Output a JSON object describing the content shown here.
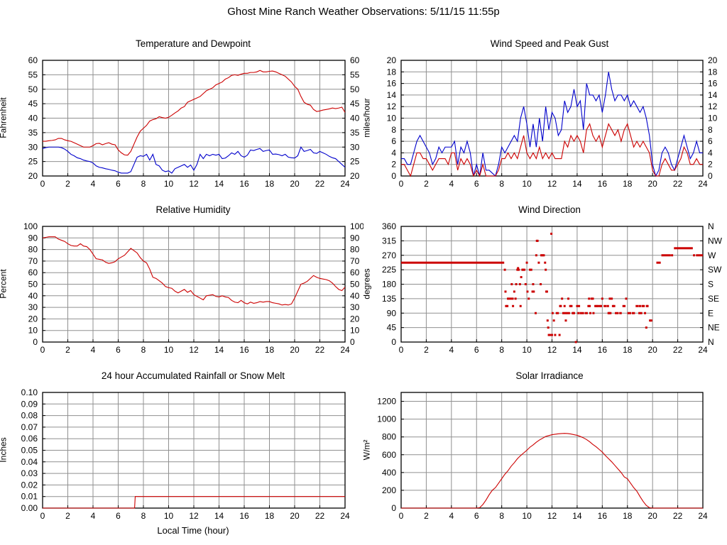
{
  "page_title": "Ghost Mine Ranch Weather Observations: 5/11/15 11:55p",
  "colors": {
    "red": "#cc0000",
    "blue": "#0000cc",
    "grid": "#909090",
    "frame": "#000000",
    "background": "#ffffff"
  },
  "chart_data": [
    {
      "type": "line",
      "title": "Temperature and Dewpoint",
      "ylabel": "Fahrenheit",
      "xlim": [
        0,
        24
      ],
      "xtick_step": 2,
      "ylim": [
        20,
        60
      ],
      "ytick_step": 5,
      "ytick_decimals": 0,
      "right_axis": "mirror",
      "series": [
        {
          "name": "Temperature",
          "color": "red",
          "x_start": 0,
          "x_step": 0.25,
          "values": [
            32,
            32,
            32.2,
            32.3,
            32.5,
            33,
            33,
            32.5,
            32.2,
            32,
            31.5,
            31,
            30.5,
            30,
            30,
            30,
            30.5,
            31.2,
            31.3,
            30.8,
            31.2,
            31.5,
            31,
            30.8,
            29,
            28,
            27.3,
            27.2,
            28.5,
            31,
            33.5,
            35.5,
            36.5,
            37.5,
            39,
            39.5,
            39.8,
            40.5,
            40.2,
            40,
            40.3,
            41,
            41.8,
            42.5,
            43.5,
            44,
            45.5,
            46,
            46.5,
            47,
            47.5,
            48.5,
            49.5,
            50,
            50.5,
            51.5,
            52,
            52.5,
            53.5,
            54,
            54.8,
            55,
            54.8,
            55.2,
            55.5,
            55.5,
            55.8,
            55.8,
            56,
            56.5,
            56,
            56,
            56.2,
            56.3,
            56,
            55.5,
            55,
            54.5,
            53.5,
            52.5,
            51,
            50,
            47.5,
            45.5,
            44.8,
            44.5,
            43,
            42.3,
            42.5,
            42.8,
            43,
            43.2,
            43.5,
            43.3,
            43.5,
            43.8,
            42
          ]
        },
        {
          "name": "Dewpoint",
          "color": "blue",
          "x_start": 0,
          "x_step": 0.25,
          "values": [
            29.5,
            29.8,
            30,
            30,
            30,
            30,
            29.8,
            29.3,
            28.5,
            27.5,
            27,
            26.3,
            26,
            25.5,
            25.2,
            25,
            24.5,
            23.5,
            23,
            22.8,
            22.5,
            22.3,
            22,
            21.8,
            21.3,
            21,
            21,
            21,
            21.5,
            24,
            26.5,
            27,
            26.8,
            27.5,
            25.5,
            27.5,
            24,
            23.5,
            22,
            21.5,
            21.8,
            21,
            22.5,
            23,
            23.5,
            24,
            23,
            23.8,
            22,
            24,
            27.5,
            26,
            27.5,
            27,
            27.5,
            27.2,
            27.5,
            26,
            26.2,
            27,
            28,
            27.5,
            28.5,
            27,
            26.5,
            27.2,
            29,
            28.8,
            29.2,
            29.5,
            28.5,
            28.8,
            29,
            27.5,
            27.6,
            27.4,
            27,
            27.5,
            26.5,
            26.3,
            26.2,
            27,
            30,
            28.5,
            28.8,
            29.2,
            28,
            27.8,
            28.5,
            28,
            27.5,
            26.8,
            26.3,
            26,
            25,
            24,
            23
          ]
        }
      ]
    },
    {
      "type": "line",
      "title": "Wind Speed and Peak Gust",
      "ylabel": "miles/hour",
      "xlim": [
        0,
        24
      ],
      "xtick_step": 2,
      "ylim": [
        0,
        20
      ],
      "ytick_step": 2,
      "ytick_decimals": 0,
      "right_axis": "mirror",
      "series": [
        {
          "name": "Peak Gust",
          "color": "blue",
          "x_start": 0,
          "x_step": 0.25,
          "values": [
            3,
            3,
            2,
            2,
            4,
            6,
            7,
            6,
            5,
            4,
            2,
            3,
            5,
            4,
            5,
            5,
            5,
            6,
            2,
            5,
            4,
            6,
            4,
            0,
            2,
            0,
            4,
            1,
            1,
            0.5,
            0,
            2,
            5,
            4,
            5,
            6,
            7,
            6,
            10,
            12,
            9,
            5,
            9,
            5,
            10,
            6,
            12,
            8,
            11,
            10,
            7,
            8,
            13,
            11,
            12,
            15,
            12,
            13,
            8,
            16,
            14,
            14,
            13,
            14,
            11,
            14,
            18,
            15,
            13,
            14,
            14,
            13,
            14,
            12,
            13,
            12,
            11,
            12,
            10,
            7,
            2,
            0,
            1,
            4,
            5,
            4,
            2,
            1,
            3,
            5,
            7,
            5,
            3,
            4,
            6,
            4,
            4
          ]
        },
        {
          "name": "Wind Speed",
          "color": "red",
          "x_start": 0,
          "x_step": 0.25,
          "values": [
            2,
            2,
            1,
            0,
            2,
            4,
            4,
            3,
            3,
            2,
            1,
            2,
            3,
            3,
            3,
            2,
            4,
            4,
            1,
            3,
            2,
            3,
            2,
            0,
            1,
            0,
            2,
            0,
            0,
            0,
            0,
            1,
            3,
            3,
            4,
            3,
            4,
            3,
            5,
            7,
            4,
            3,
            4,
            3,
            5,
            3,
            4,
            3,
            4,
            3,
            3,
            3,
            6,
            5,
            7,
            6,
            7,
            6,
            4,
            8,
            9,
            7,
            6,
            7,
            5,
            7,
            9,
            8,
            7,
            8,
            6,
            8,
            9,
            7,
            5,
            6,
            5,
            6,
            5,
            4,
            1,
            0,
            0,
            2,
            3,
            2,
            1,
            1,
            2,
            3,
            5,
            4,
            2,
            2,
            3,
            2,
            2
          ]
        }
      ]
    },
    {
      "type": "line",
      "title": "Relative Humidity",
      "ylabel": "Percent",
      "xlim": [
        0,
        24
      ],
      "xtick_step": 2,
      "ylim": [
        0,
        100
      ],
      "ytick_step": 10,
      "ytick_decimals": 0,
      "right_axis": "mirror",
      "series": [
        {
          "name": "Relative Humidity",
          "color": "red",
          "x_start": 0,
          "x_step": 0.25,
          "values": [
            90,
            90.5,
            91,
            91,
            91,
            89,
            88,
            87,
            85,
            83.5,
            83,
            83,
            85,
            83,
            82.5,
            80,
            76,
            72,
            71.5,
            71,
            69,
            68,
            68.5,
            69.5,
            72,
            73.5,
            75,
            78,
            81,
            79,
            77,
            73,
            70,
            68.5,
            63,
            56,
            55,
            53,
            51,
            48,
            47,
            46.5,
            44,
            42.5,
            44,
            45.5,
            43,
            44.5,
            41,
            39.5,
            38,
            36.5,
            40,
            40.5,
            41,
            39.5,
            39,
            40,
            39,
            38.5,
            36,
            34.5,
            34,
            36,
            34,
            33,
            34.5,
            33.5,
            34,
            35,
            34.5,
            35,
            35,
            34,
            33.5,
            33,
            32,
            32.5,
            32,
            33,
            38,
            44,
            50,
            51,
            52.5,
            55,
            57.5,
            56,
            55,
            54.5,
            54,
            53,
            51,
            48,
            45.5,
            44.5,
            47.5
          ]
        }
      ]
    },
    {
      "type": "scatter",
      "title": "Wind Direction",
      "ylabel": "degrees",
      "xlim": [
        0,
        24
      ],
      "xtick_step": 2,
      "ylim": [
        0,
        360
      ],
      "ytick_step": 45,
      "ytick_decimals": 0,
      "right_axis": "compass",
      "compass_labels": [
        "N",
        "NE",
        "E",
        "SE",
        "S",
        "SW",
        "W",
        "NW",
        "N"
      ],
      "marker_color": "red",
      "segments": [
        [
          0,
          8.2,
          247
        ],
        [
          8.55,
          8.95,
          135
        ],
        [
          12.3,
          12.55,
          90
        ],
        [
          14.2,
          14.55,
          90
        ],
        [
          14.6,
          14.85,
          90
        ],
        [
          16.1,
          16.35,
          112
        ],
        [
          17.0,
          17.3,
          90
        ],
        [
          17.35,
          17.55,
          90
        ],
        [
          17.6,
          17.85,
          112
        ],
        [
          18.0,
          18.3,
          90
        ],
        [
          18.35,
          18.6,
          90
        ],
        [
          18.65,
          18.9,
          112
        ],
        [
          20.3,
          20.65,
          247
        ],
        [
          20.7,
          21.45,
          270
        ],
        [
          21.7,
          23.2,
          292
        ],
        [
          23.45,
          24,
          270
        ]
      ],
      "points": [
        [
          8.25,
          225
        ],
        [
          8.3,
          157
        ],
        [
          8.35,
          112
        ],
        [
          8.45,
          112
        ],
        [
          8.5,
          135
        ],
        [
          8.8,
          180
        ],
        [
          8.9,
          112
        ],
        [
          9.0,
          157
        ],
        [
          9.1,
          135
        ],
        [
          9.15,
          180
        ],
        [
          9.25,
          225
        ],
        [
          9.3,
          230
        ],
        [
          9.35,
          225
        ],
        [
          9.45,
          180
        ],
        [
          9.5,
          112
        ],
        [
          9.55,
          202
        ],
        [
          9.65,
          225
        ],
        [
          9.7,
          225
        ],
        [
          9.8,
          225
        ],
        [
          9.9,
          180
        ],
        [
          10.0,
          247
        ],
        [
          10.05,
          157
        ],
        [
          10.15,
          135
        ],
        [
          10.25,
          225
        ],
        [
          10.35,
          225
        ],
        [
          10.45,
          157
        ],
        [
          10.5,
          180
        ],
        [
          10.55,
          157
        ],
        [
          10.7,
          90
        ],
        [
          10.75,
          270
        ],
        [
          10.8,
          315
        ],
        [
          10.85,
          315
        ],
        [
          10.95,
          247
        ],
        [
          11.1,
          180
        ],
        [
          11.15,
          270
        ],
        [
          11.25,
          270
        ],
        [
          11.35,
          270
        ],
        [
          11.45,
          247
        ],
        [
          11.5,
          225
        ],
        [
          11.55,
          157
        ],
        [
          11.6,
          157
        ],
        [
          11.65,
          67
        ],
        [
          11.7,
          45
        ],
        [
          11.75,
          22
        ],
        [
          11.85,
          22
        ],
        [
          11.95,
          337
        ],
        [
          12.0,
          22
        ],
        [
          12.05,
          90
        ],
        [
          12.15,
          67
        ],
        [
          12.25,
          22
        ],
        [
          12.6,
          22
        ],
        [
          12.65,
          112
        ],
        [
          12.7,
          112
        ],
        [
          12.8,
          135
        ],
        [
          12.9,
          90
        ],
        [
          13.0,
          112
        ],
        [
          13.05,
          90
        ],
        [
          13.1,
          67
        ],
        [
          13.2,
          90
        ],
        [
          13.3,
          135
        ],
        [
          13.35,
          90
        ],
        [
          13.45,
          112
        ],
        [
          13.55,
          112
        ],
        [
          13.65,
          90
        ],
        [
          13.7,
          90
        ],
        [
          13.75,
          90
        ],
        [
          13.9,
          0
        ],
        [
          14.0,
          112
        ],
        [
          14.1,
          90
        ],
        [
          14.15,
          112
        ],
        [
          14.9,
          112
        ],
        [
          14.95,
          135
        ],
        [
          15.0,
          112
        ],
        [
          15.05,
          90
        ],
        [
          15.15,
          135
        ],
        [
          15.25,
          135
        ],
        [
          15.3,
          90
        ],
        [
          15.45,
          112
        ],
        [
          15.55,
          112
        ],
        [
          15.65,
          112
        ],
        [
          15.8,
          112
        ],
        [
          15.9,
          112
        ],
        [
          16.0,
          135
        ],
        [
          16.45,
          112
        ],
        [
          16.5,
          90
        ],
        [
          16.55,
          90
        ],
        [
          16.6,
          135
        ],
        [
          16.65,
          90
        ],
        [
          16.75,
          135
        ],
        [
          16.85,
          112
        ],
        [
          16.95,
          112
        ],
        [
          17.9,
          135
        ],
        [
          18.95,
          90
        ],
        [
          19.0,
          112
        ],
        [
          19.1,
          90
        ],
        [
          19.2,
          112
        ],
        [
          19.3,
          112
        ],
        [
          19.4,
          90
        ],
        [
          19.5,
          45
        ],
        [
          19.55,
          112
        ],
        [
          19.6,
          112
        ],
        [
          19.8,
          67
        ],
        [
          19.9,
          67
        ],
        [
          21.55,
          270
        ],
        [
          23.3,
          270
        ]
      ]
    },
    {
      "type": "line",
      "title": "24 hour Accumulated Rainfall or Snow Melt",
      "ylabel": "Inches",
      "xlabel": "Local Time (hour)",
      "xlim": [
        0,
        24
      ],
      "xtick_step": 2,
      "ylim": [
        0,
        0.1
      ],
      "ytick_step": 0.01,
      "ytick_decimals": 2,
      "right_axis": "none",
      "series": [
        {
          "name": "Accumulated Rainfall",
          "color": "red",
          "points": [
            [
              0,
              0
            ],
            [
              7.3,
              0
            ],
            [
              7.35,
              0.01
            ],
            [
              24,
              0.01
            ]
          ]
        }
      ]
    },
    {
      "type": "line",
      "title": "Solar Irradiance",
      "ylabel": "W/m²",
      "xlim": [
        0,
        24
      ],
      "xtick_step": 2,
      "ylim": [
        0,
        1300
      ],
      "ytick_step": 200,
      "ytick_decimals": 0,
      "right_axis": "none",
      "series": [
        {
          "name": "Solar Irradiance",
          "color": "red",
          "x_start": 0,
          "x_step": 0.25,
          "values": [
            0,
            0,
            0,
            0,
            0,
            0,
            0,
            0,
            0,
            0,
            0,
            0,
            0,
            0,
            0,
            0,
            0,
            0,
            0,
            0,
            0,
            0,
            0,
            0,
            0,
            5,
            40,
            90,
            150,
            200,
            230,
            280,
            330,
            380,
            420,
            470,
            510,
            555,
            590,
            620,
            650,
            685,
            710,
            740,
            765,
            785,
            805,
            815,
            825,
            830,
            835,
            838,
            840,
            838,
            833,
            825,
            818,
            805,
            790,
            770,
            745,
            715,
            690,
            660,
            630,
            590,
            555,
            520,
            480,
            440,
            400,
            350,
            330,
            280,
            230,
            190,
            130,
            75,
            30,
            5,
            0,
            0,
            0,
            0,
            0,
            0,
            0,
            0,
            0,
            0,
            0,
            0,
            0,
            0,
            0,
            0,
            0
          ]
        }
      ]
    }
  ]
}
